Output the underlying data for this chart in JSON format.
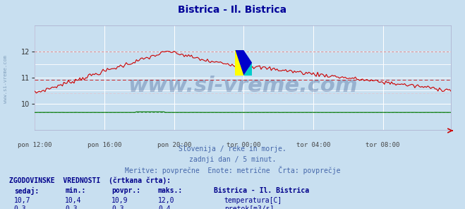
{
  "title": "Bistrica - Il. Bistrica",
  "title_color": "#000099",
  "bg_color": "#c8dff0",
  "plot_bg_color": "#c8dff0",
  "grid_color": "#ffffff",
  "xlabel_ticks": [
    "pon 12:00",
    "pon 16:00",
    "pon 20:00",
    "tor 00:00",
    "tor 04:00",
    "tor 08:00"
  ],
  "tick_positions": [
    0,
    48,
    96,
    144,
    192,
    240
  ],
  "total_points": 288,
  "xlim": [
    0,
    287
  ],
  "ylim_temp": [
    9.0,
    13.0
  ],
  "yticks_temp": [
    10,
    11,
    12
  ],
  "temp_color": "#cc0000",
  "flow_color": "#007700",
  "temp_avg": 10.9,
  "temp_max_line": 12.0,
  "temp_min_line": 10.4,
  "flow_avg": 0.3,
  "flow_ylim": [
    -2.0,
    12.0
  ],
  "watermark_text": "www.si-vreme.com",
  "watermark_color": "#1a3a7a",
  "watermark_alpha": 0.28,
  "watermark_fontsize": 22,
  "footer_lines": [
    "Slovenija / reke in morje.",
    "zadnji dan / 5 minut.",
    "Meritve: povprečne  Enote: metrične  Črta: povprečje"
  ],
  "footer_color": "#4466aa",
  "table_header": "ZGODOVINSKE  VREDNOSTI  (črtkana črta):",
  "col_headers": [
    "sedaj:",
    "min.:",
    "povpr.:",
    "maks.:",
    "Bistrica - Il. Bistrica"
  ],
  "row1_vals": [
    "10,7",
    "10,4",
    "10,9",
    "12,0"
  ],
  "row1_label": "temperatura[C]",
  "row1_color": "#cc0000",
  "row2_vals": [
    "0,3",
    "0,3",
    "0,3",
    "0,4"
  ],
  "row2_label": "pretok[m3/s]",
  "row2_color": "#007700",
  "table_color": "#00008b",
  "left_label": "www.si-vreme.com",
  "left_label_color": "#6688aa"
}
